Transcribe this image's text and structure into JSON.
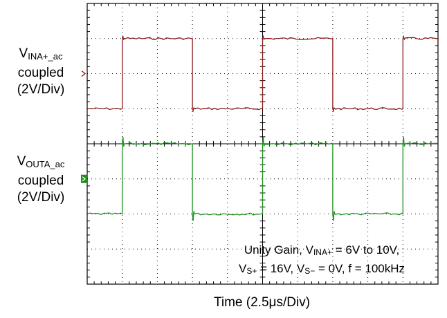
{
  "chart_data": {
    "type": "line",
    "title": "",
    "xlabel": "Time  (2.5μs/Div)",
    "divisions": {
      "x": 10,
      "y": 8
    },
    "time_per_div_us": 2.5,
    "volts_per_div": 2,
    "grid": "dotted",
    "channels": [
      {
        "name": "VINA+_ac coupled",
        "label_main": "V",
        "label_sub": "INA+_ac",
        "label_line2": "coupled",
        "label_line3": "(2V/Div)",
        "color": "#8b1a1a",
        "ground_marker": "hollow-arrow",
        "ground_div": 2,
        "low_div": 1,
        "high_div": 3,
        "x_us": [
          0,
          2.5,
          2.5,
          7.5,
          7.5,
          12.5,
          12.5,
          17.5,
          17.5,
          22.5,
          22.5,
          25
        ],
        "y_div": [
          1,
          1,
          3,
          3,
          1,
          1,
          3,
          3,
          1,
          1,
          3,
          3
        ]
      },
      {
        "name": "VOUTA_ac coupled",
        "label_main": "V",
        "label_sub": "OUTA_ac",
        "label_line2": "coupled",
        "label_line3": "(2V/Div)",
        "color": "#1e8f1e",
        "ground_marker": "filled-arrow",
        "ground_div": -1,
        "low_div": -2,
        "high_div": 0,
        "x_us": [
          0,
          2.5,
          2.5,
          7.5,
          7.5,
          12.5,
          12.5,
          17.5,
          17.5,
          22.5,
          22.5,
          25
        ],
        "y_div": [
          -2,
          -2,
          0,
          0,
          -2,
          -2,
          0,
          0,
          -2,
          -2,
          0,
          0
        ]
      }
    ],
    "annotation": {
      "line1_prefix": "Unity Gain, V",
      "line1_sub": "INA+",
      "line1_suffix": " = 6V to 10V,",
      "line2_v1": "V",
      "line2_sub1": "S+",
      "line2_mid": " = 16V, V",
      "line2_sub2": "S−",
      "line2_suffix": " = 0V, f = 100kHz"
    }
  }
}
